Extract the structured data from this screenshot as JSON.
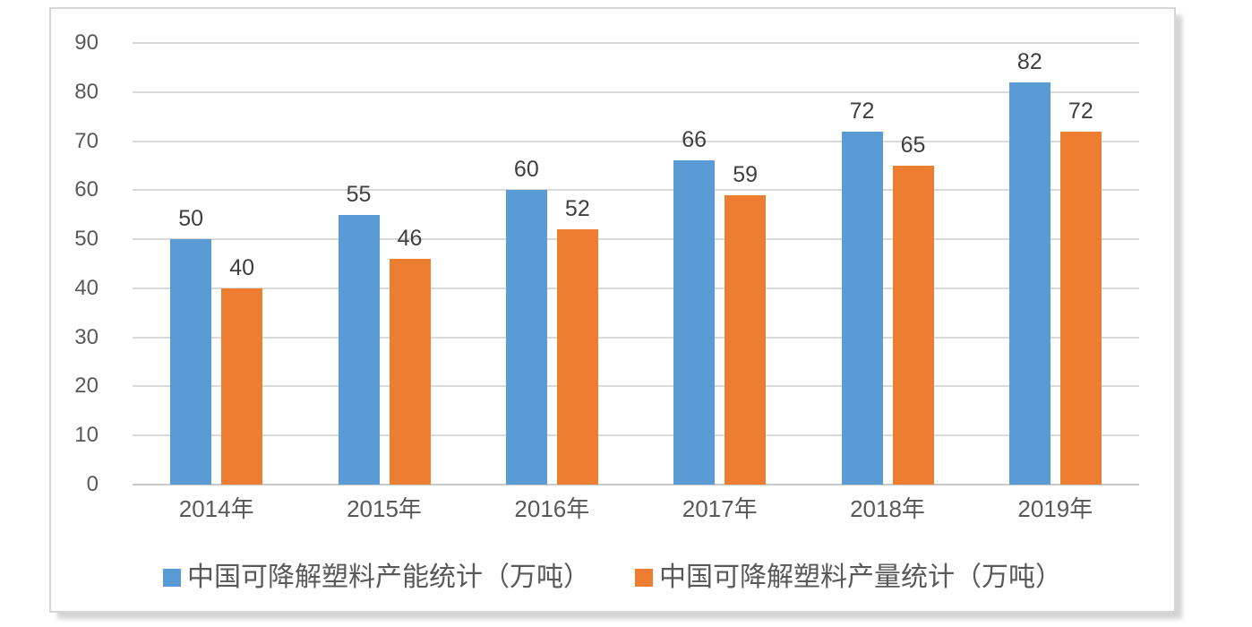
{
  "chart_data": {
    "type": "bar",
    "title": "",
    "xlabel": "",
    "ylabel": "",
    "categories": [
      "2014年",
      "2015年",
      "2016年",
      "2017年",
      "2018年",
      "2019年"
    ],
    "series": [
      {
        "name": "中国可降解塑料产能统计（万吨）",
        "color": "#5B9BD5",
        "values": [
          50,
          55,
          60,
          66,
          72,
          82
        ]
      },
      {
        "name": "中国可降解塑料产量统计（万吨）",
        "color": "#ED7D31",
        "values": [
          40,
          46,
          52,
          59,
          65,
          72
        ]
      }
    ],
    "ylim": [
      0,
      90
    ],
    "yticks": [
      0,
      10,
      20,
      30,
      40,
      50,
      60,
      70,
      80,
      90
    ],
    "grid": true,
    "data_labels": true,
    "legend_position": "bottom",
    "styles": {
      "gridline_color": "#d9d9d9",
      "axis_text_color": "#595959",
      "data_label_color": "#3f3f3f",
      "frame_border_color": "#d6d6d6",
      "background_color": "#ffffff"
    }
  }
}
